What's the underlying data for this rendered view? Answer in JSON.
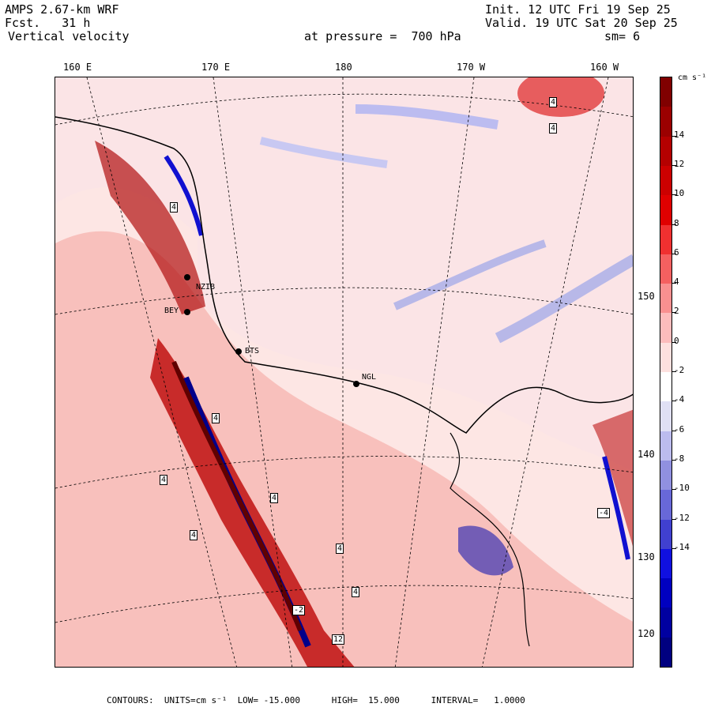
{
  "header": {
    "model": "AMPS 2.67-km WRF",
    "forecast_label": "Fcst.",
    "forecast_hours": "31 h",
    "field": "Vertical velocity",
    "level": "at pressure =  700 hPa",
    "init": "Init. 12 UTC Fri 19 Sep 25",
    "valid": "Valid. 19 UTC Sat 20 Sep 25",
    "smoothing": "sm= 6"
  },
  "longitude_labels": [
    "160 E",
    "170 E",
    "180",
    "170 W",
    "160 W"
  ],
  "latitude_labels": [
    "150 W",
    "140 W",
    "130 W",
    "120 W"
  ],
  "stations": [
    "NZIB",
    "BEY",
    "BTS",
    "NGL"
  ],
  "contour_labels": [
    "4",
    "4",
    "4",
    "4",
    "4",
    "4",
    "4",
    "4",
    "-4",
    "4",
    "-2",
    "12"
  ],
  "colorbar": {
    "unit": "cm s⁻¹",
    "ticks": [
      "14",
      "12",
      "10",
      "8",
      "6",
      "4",
      "2",
      "0",
      "-2",
      "-4",
      "-6",
      "-8",
      "-10",
      "-12",
      "-14"
    ],
    "colors": [
      "#800000",
      "#9b0000",
      "#b40000",
      "#cc0000",
      "#e00000",
      "#f03030",
      "#f56060",
      "#f99090",
      "#fcbcbc",
      "#fde0de",
      "#ffffff",
      "#e0e0f5",
      "#bcbcee",
      "#9090e0",
      "#6868d8",
      "#4040d0",
      "#1010e0",
      "#0000c0",
      "#0000a0",
      "#000080"
    ]
  },
  "footer": "CONTOURS:  UNITS=cm s⁻¹  LOW= -15.000      HIGH=  15.000      INTERVAL=   1.0000"
}
